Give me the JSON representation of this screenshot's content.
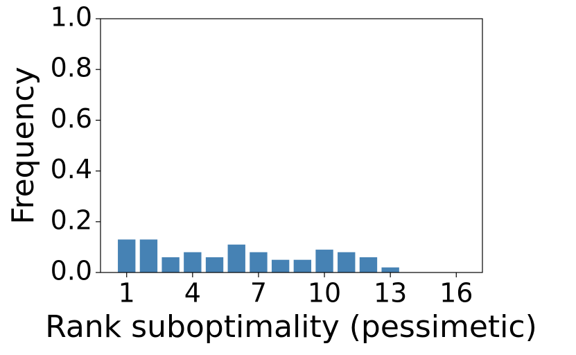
{
  "chart_data": {
    "type": "bar",
    "x": [
      1,
      2,
      3,
      4,
      5,
      6,
      7,
      8,
      9,
      10,
      11,
      12,
      13,
      14,
      15,
      16
    ],
    "values": [
      0.13,
      0.13,
      0.06,
      0.08,
      0.06,
      0.11,
      0.08,
      0.05,
      0.05,
      0.09,
      0.08,
      0.06,
      0.02,
      0,
      0,
      0
    ],
    "color": "#4682b4",
    "xlabel": "Rank suboptimality (pessimetic)",
    "ylabel": "Frequency",
    "xlim": [
      -0.19,
      17.19
    ],
    "ylim": [
      0,
      1
    ],
    "xticks": [
      1,
      4,
      7,
      10,
      13,
      16
    ],
    "yticks": [
      {
        "value": 0,
        "label": "0.0"
      },
      {
        "value": 0.2,
        "label": "0.2"
      },
      {
        "value": 0.4,
        "label": "0.4"
      },
      {
        "value": 0.6,
        "label": "0.6"
      },
      {
        "value": 0.8,
        "label": "0.8"
      },
      {
        "value": 1,
        "label": "1.0"
      }
    ],
    "grid": false
  }
}
